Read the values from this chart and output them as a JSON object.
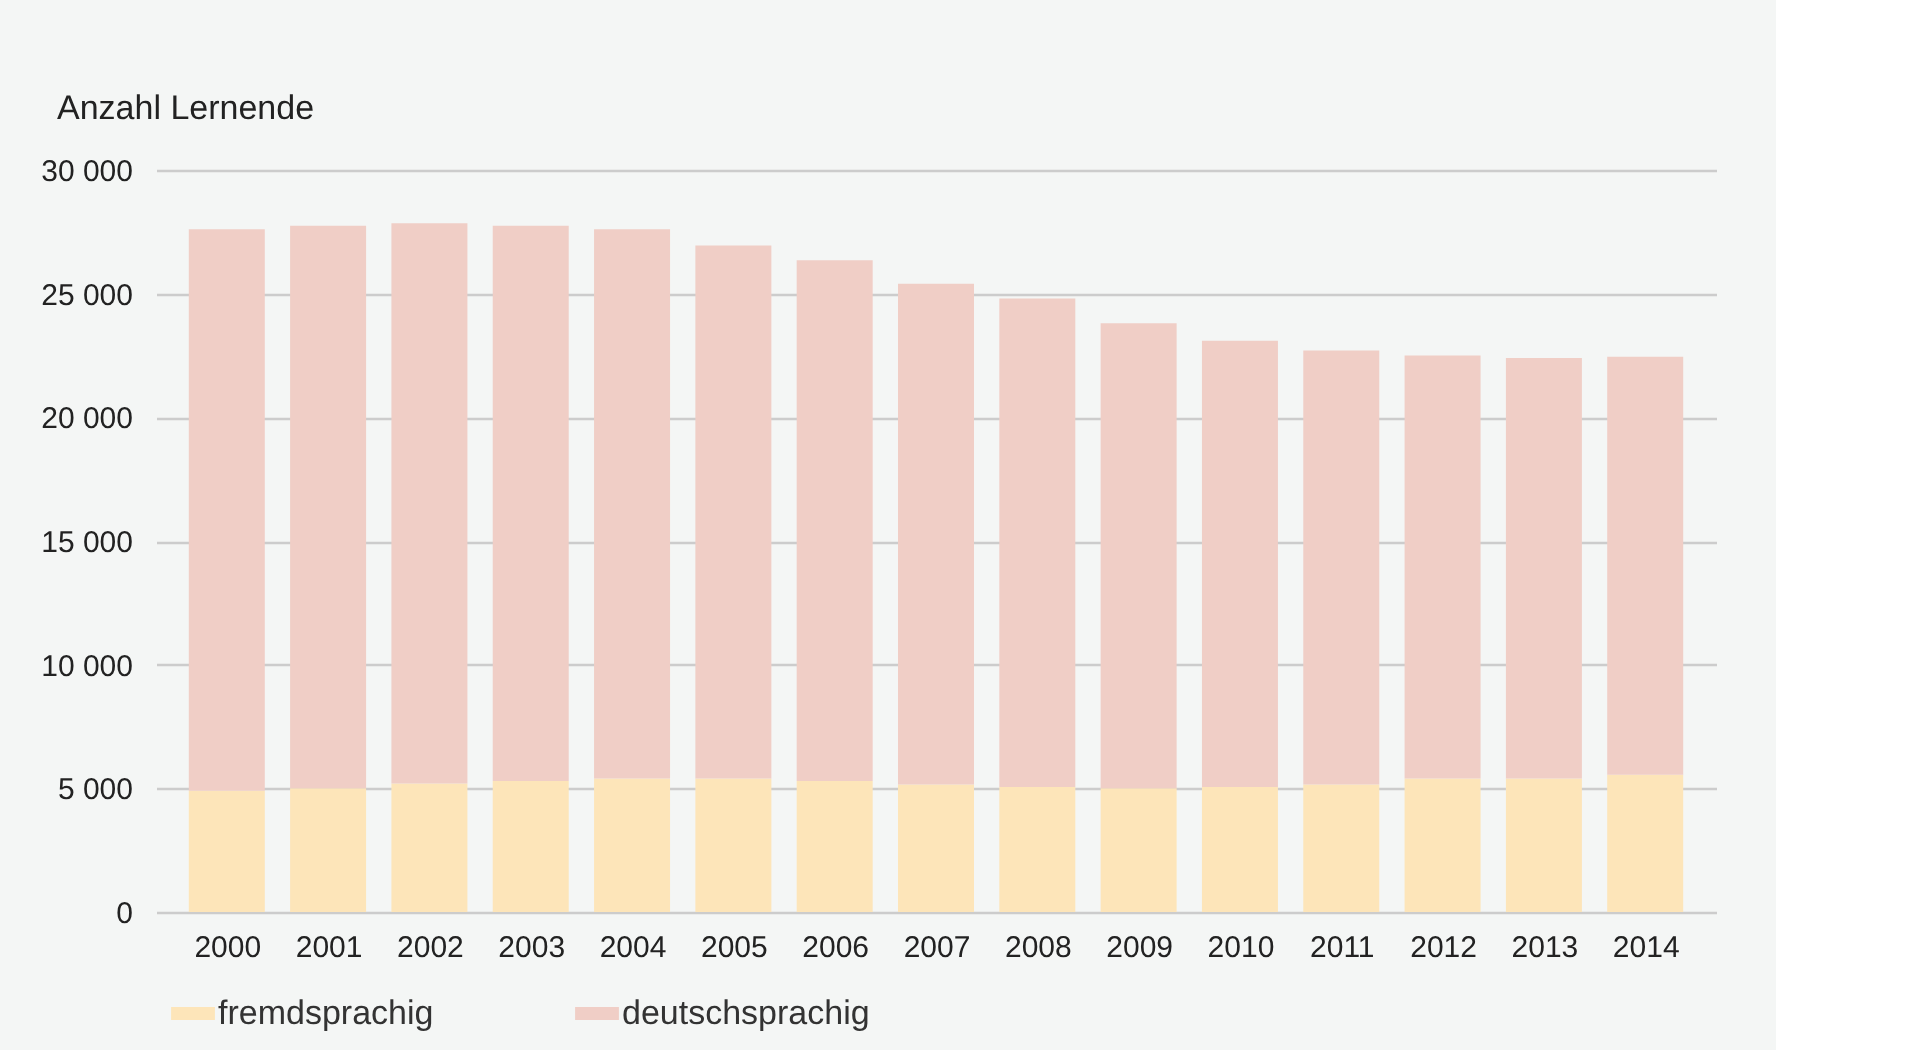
{
  "chart_data": {
    "type": "bar",
    "stacked": true,
    "ylabel": "Anzahl Lernende",
    "categories": [
      "2000",
      "2001",
      "2002",
      "2003",
      "2004",
      "2005",
      "2006",
      "2007",
      "2008",
      "2009",
      "2010",
      "2011",
      "2012",
      "2013",
      "2014"
    ],
    "series": [
      {
        "name": "fremdsprachig",
        "color": "#fde5b9",
        "values": [
          4900,
          5000,
          5200,
          5300,
          5400,
          5400,
          5300,
          5150,
          5050,
          5000,
          5050,
          5150,
          5400,
          5400,
          5550
        ]
      },
      {
        "name": "deutschsprachig",
        "color": "#f0cec6",
        "values": [
          22700,
          22750,
          22650,
          22450,
          22200,
          21550,
          21050,
          20250,
          19750,
          18800,
          18050,
          17550,
          17100,
          17000,
          16900
        ]
      }
    ],
    "ylim": [
      0,
      30000
    ],
    "yticks": [
      0,
      {
        "value": 5000,
        "label": "5 000"
      },
      {
        "value": 10000,
        "label": "10 000"
      },
      {
        "value": 15000,
        "label": "15 000"
      },
      {
        "value": 20000,
        "label": "20 000"
      },
      {
        "value": 25000,
        "label": "25 000"
      },
      {
        "value": 30000,
        "label": "30 000"
      }
    ],
    "grid": "y",
    "legend": "bottom left"
  }
}
